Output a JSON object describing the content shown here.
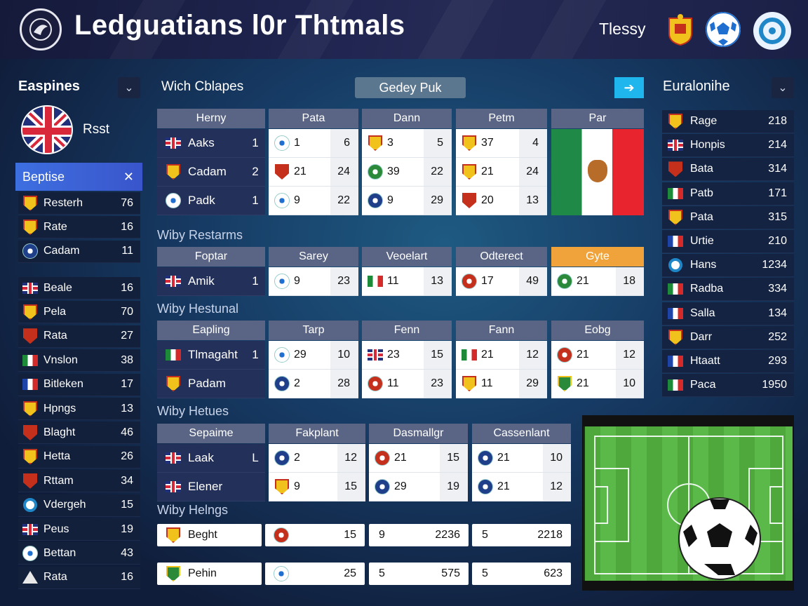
{
  "header": {
    "title": "Ledguatians l0r Thtmals",
    "user": "Tlessy"
  },
  "left_panel": {
    "title": "Easpines",
    "profile_name": "Rsst",
    "selected": "Beptise",
    "rows_a": [
      {
        "name": "Resterh",
        "value": "76",
        "icon": "shield-yellow"
      },
      {
        "name": "Rate",
        "value": "16",
        "icon": "shield-yellow"
      },
      {
        "name": "Cadam",
        "value": "11",
        "icon": "crest-blue"
      }
    ],
    "rows_b": [
      {
        "name": "Beale",
        "value": "16",
        "icon": "flag-uk"
      },
      {
        "name": "Pela",
        "value": "70",
        "icon": "shield-yellow"
      },
      {
        "name": "Rata",
        "value": "27",
        "icon": "shield-red"
      },
      {
        "name": "Vnslon",
        "value": "38",
        "icon": "flag-it"
      },
      {
        "name": "Bitleken",
        "value": "17",
        "icon": "flag-fr"
      },
      {
        "name": "Hpngs",
        "value": "13",
        "icon": "shield-yellow"
      },
      {
        "name": "Blaght",
        "value": "46",
        "icon": "shield-red"
      },
      {
        "name": "Hetta",
        "value": "26",
        "icon": "shield-yellow"
      },
      {
        "name": "Rttam",
        "value": "34",
        "icon": "shield-red"
      },
      {
        "name": "Vdergeh",
        "value": "15",
        "icon": "ring"
      },
      {
        "name": "Peus",
        "value": "19",
        "icon": "flag-uk"
      },
      {
        "name": "Bettan",
        "value": "43",
        "icon": "ball"
      },
      {
        "name": "Rata",
        "value": "16",
        "icon": "triangle"
      }
    ]
  },
  "main": {
    "title": "Wich Cblapes",
    "pill": "Gedey Puk",
    "table1": {
      "headers": [
        "Herny",
        "Pata",
        "Dann",
        "Petm",
        "Par"
      ],
      "rows": [
        {
          "team": "Aaks",
          "val": "1",
          "icon": "flag-uk",
          "cells": [
            [
              "1",
              "6",
              "ball"
            ],
            [
              "3",
              "5",
              "shield-yellow"
            ],
            [
              "37",
              "4",
              "shield-yellow"
            ]
          ]
        },
        {
          "team": "Cadam",
          "val": "2",
          "icon": "shield-yellow",
          "cells": [
            [
              "21",
              "24",
              "shield-red"
            ],
            [
              "39",
              "22",
              "crest-green"
            ],
            [
              "21",
              "24",
              "shield-yellow"
            ]
          ]
        },
        {
          "team": "Padk",
          "val": "1",
          "icon": "ball",
          "cells": [
            [
              "9",
              "22",
              "ball"
            ],
            [
              "9",
              "29",
              "crest-blue"
            ],
            [
              "20",
              "13",
              "shield-red"
            ]
          ]
        }
      ]
    },
    "sub1": "Wiby Restarms",
    "table2": {
      "headers": [
        "Foptar",
        "Sarey",
        "Veoelart",
        "Odterect",
        "Gyte"
      ],
      "rows": [
        {
          "team": "Amik",
          "val": "1",
          "icon": "flag-uk",
          "cells": [
            [
              "9",
              "23",
              "ball"
            ],
            [
              "11",
              "13",
              "flag-it"
            ],
            [
              "17",
              "49",
              "crest-red"
            ],
            [
              "21",
              "18",
              "crest-green"
            ]
          ]
        }
      ]
    },
    "sub2": "Wiby Hestunal",
    "table3": {
      "headers": [
        "Eapling",
        "Tarp",
        "Fenn",
        "Fann",
        "Eobg"
      ],
      "rows": [
        {
          "team": "Tlmagaht",
          "val": "1",
          "icon": "flag-it",
          "cells": [
            [
              "29",
              "10",
              "ball"
            ],
            [
              "23",
              "15",
              "flag-uk"
            ],
            [
              "21",
              "12",
              "flag-it"
            ],
            [
              "21",
              "12",
              "crest-red"
            ]
          ]
        },
        {
          "team": "Padam",
          "val": "",
          "icon": "shield-yellow",
          "cells": [
            [
              "2",
              "28",
              "crest-blue"
            ],
            [
              "11",
              "23",
              "crest-red"
            ],
            [
              "11",
              "29",
              "shield-yellow"
            ],
            [
              "21",
              "10",
              "shield-green"
            ]
          ]
        }
      ]
    },
    "sub3": "Wiby Hetues",
    "table4": {
      "headers": [
        "Sepaime",
        "Fakplant",
        "Dasmallgr",
        "Cassenlant"
      ],
      "rows": [
        {
          "team": "Laak",
          "val": "L",
          "icon": "flag-uk",
          "cells": [
            [
              "2",
              "12",
              "crest-blue"
            ],
            [
              "21",
              "15",
              "crest-red"
            ],
            [
              "21",
              "10",
              "crest-blue"
            ]
          ]
        },
        {
          "team": "Elener",
          "val": "",
          "icon": "flag-uk",
          "cells": [
            [
              "9",
              "15",
              "shield-yellow"
            ],
            [
              "29",
              "19",
              "crest-blue"
            ],
            [
              "21",
              "12",
              "crest-blue"
            ]
          ]
        }
      ]
    },
    "sub4": "Wiby Helngs",
    "bottom_rows": [
      {
        "team": "Beght",
        "icon": "shield-yellow",
        "v1": "15",
        "v2a": "9",
        "v2b": "2236",
        "v3a": "5",
        "v3b": "2218"
      },
      {
        "team": "Pehin",
        "icon": "shield-green",
        "v1": "25",
        "v2a": "5",
        "v2b": "575",
        "v3a": "5",
        "v3b": "623"
      }
    ]
  },
  "right_panel": {
    "title": "Euralonihe",
    "rows": [
      {
        "name": "Rage",
        "value": "218",
        "icon": "shield-yellow"
      },
      {
        "name": "Honpis",
        "value": "214",
        "icon": "flag-uk"
      },
      {
        "name": "Bata",
        "value": "314",
        "icon": "shield-red"
      },
      {
        "name": "Patb",
        "value": "171",
        "icon": "flag-it"
      },
      {
        "name": "Pata",
        "value": "315",
        "icon": "shield-yellow"
      },
      {
        "name": "Urtie",
        "value": "210",
        "icon": "flag-fr"
      },
      {
        "name": "Hans",
        "value": "1234",
        "icon": "ring"
      },
      {
        "name": "Radba",
        "value": "334",
        "icon": "flag-it"
      },
      {
        "name": "Salla",
        "value": "134",
        "icon": "flag-fr"
      },
      {
        "name": "Darr",
        "value": "252",
        "icon": "shield-yellow"
      },
      {
        "name": "Htaatt",
        "value": "293",
        "icon": "flag-fr"
      },
      {
        "name": "Paca",
        "value": "1950",
        "icon": "flag-it"
      }
    ]
  },
  "colors": {
    "accent": "#3d6fe0",
    "header_bg": "#1f2550",
    "table_header": "#5a6585",
    "highlight": "#f0a33a",
    "cyan": "#1fb6ee"
  }
}
